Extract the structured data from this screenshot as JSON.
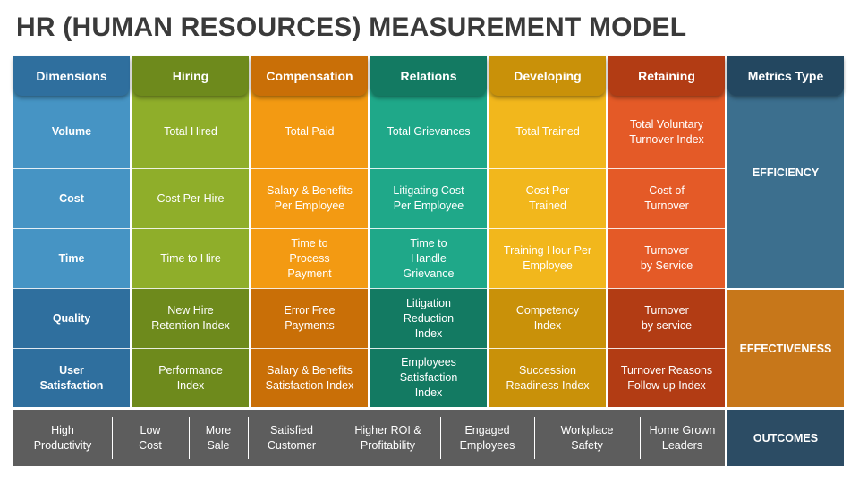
{
  "title": "HR (HUMAN RESOURCES) MEASUREMENT MODEL",
  "colors": {
    "dimensions": "#4694c4",
    "dimensions_dark": "#2f6f9e",
    "hiring": "#8fae2a",
    "hiring_dark": "#6e8a1c",
    "compensation": "#f39a12",
    "compensation_dark": "#c96f07",
    "relations": "#1fa889",
    "relations_dark": "#137a62",
    "developing": "#f2b71c",
    "developing_dark": "#c99109",
    "retaining": "#e45a27",
    "retaining_dark": "#b23c14",
    "efficiency": "#3c6f8e",
    "effectiveness": "#c7771a",
    "outcomes": "#5d5d5d",
    "metrics_header": "#234760"
  },
  "columns": [
    {
      "key": "dimensions",
      "header": "Dimensions",
      "cells": [
        "Volume",
        "Cost",
        "Time",
        "Quality",
        "User\nSatisfaction"
      ]
    },
    {
      "key": "hiring",
      "header": "Hiring",
      "cells": [
        "Total Hired",
        "Cost Per Hire",
        "Time to Hire",
        "New Hire\nRetention Index",
        "Performance\nIndex"
      ]
    },
    {
      "key": "compensation",
      "header": "Compensation",
      "cells": [
        "Total Paid",
        "Salary & Benefits\nPer Employee",
        "Time to\nProcess\nPayment",
        "Error Free\nPayments",
        "Salary & Benefits\nSatisfaction Index"
      ]
    },
    {
      "key": "relations",
      "header": "Relations",
      "cells": [
        "Total Grievances",
        "Litigating Cost\nPer Employee",
        "Time to\nHandle\nGrievance",
        "Litigation\nReduction\nIndex",
        "Employees\nSatisfaction\nIndex"
      ]
    },
    {
      "key": "developing",
      "header": "Developing",
      "cells": [
        "Total Trained",
        "Cost Per\nTrained",
        "Training Hour Per\nEmployee",
        "Competency\nIndex",
        "Succession\nReadiness Index"
      ]
    },
    {
      "key": "retaining",
      "header": "Retaining",
      "cells": [
        "Total Voluntary\nTurnover Index",
        "Cost of\nTurnover",
        "Turnover\nby Service",
        "Turnover\nby service",
        "Turnover Reasons\nFollow up Index"
      ]
    }
  ],
  "metrics": {
    "header": "Metrics Type",
    "efficiency": "EFFICIENCY",
    "effectiveness": "EFFECTIVENESS",
    "outcomes": "OUTCOMES"
  },
  "outcomes": [
    "High\nProductivity",
    "Low\nCost",
    "More\nSale",
    "Satisfied\nCustomer",
    "Higher ROI &\nProfitability",
    "Engaged\nEmployees",
    "Workplace\nSafety",
    "Home Grown\nLeaders"
  ]
}
